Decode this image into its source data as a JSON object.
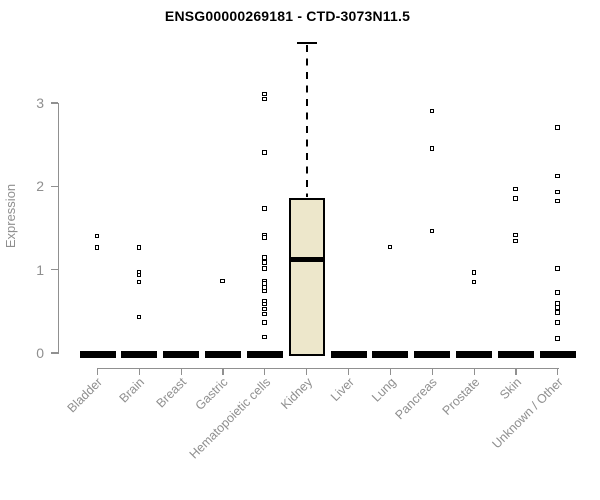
{
  "chart_data": {
    "type": "boxplot",
    "title": "ENSG00000269181 - CTD-3073N11.5",
    "ylabel": "Expression",
    "xlabel": "",
    "yticks": [
      0,
      1,
      2,
      3
    ],
    "ylim": [
      0,
      3.8
    ],
    "grid": false,
    "legend": null,
    "categories": [
      "Bladder",
      "Brain",
      "Breast",
      "Gastric",
      "Hematopoietic cells",
      "Kidney",
      "Liver",
      "Lung",
      "Pancreas",
      "Prostate",
      "Skin",
      "Unknown / Other"
    ],
    "groups": [
      {
        "name": "Bladder",
        "box": {
          "q1": 0,
          "median": 0,
          "q3": 0,
          "whiskers": [
            0,
            0
          ]
        },
        "outliers": [
          1.4,
          1.26
        ]
      },
      {
        "name": "Brain",
        "box": {
          "q1": 0,
          "median": 0,
          "q3": 0,
          "whiskers": [
            0,
            0
          ]
        },
        "outliers": [
          1.26,
          0.96,
          0.93,
          0.85,
          0.43
        ]
      },
      {
        "name": "Breast",
        "box": {
          "q1": 0,
          "median": 0,
          "q3": 0,
          "whiskers": [
            0,
            0
          ]
        },
        "outliers": []
      },
      {
        "name": "Gastric",
        "box": {
          "q1": 0,
          "median": 0,
          "q3": 0,
          "whiskers": [
            0,
            0
          ]
        },
        "outliers": [
          0.86
        ]
      },
      {
        "name": "Hematopoietic cells",
        "box": {
          "q1": 0,
          "median": 0,
          "q3": 0,
          "whiskers": [
            0,
            0
          ]
        },
        "outliers": [
          3.1,
          3.04,
          2.4,
          1.73,
          1.41,
          1.38,
          1.14,
          1.08,
          1.01,
          0.86,
          0.83,
          0.78,
          0.74,
          0.62,
          0.58,
          0.52,
          0.46,
          0.36,
          0.19
        ]
      },
      {
        "name": "Kidney",
        "box": {
          "q1": 0,
          "median": 1.12,
          "q3": 1.86,
          "whiskers": [
            0,
            3.72
          ]
        },
        "outliers": []
      },
      {
        "name": "Liver",
        "box": {
          "q1": 0,
          "median": 0,
          "q3": 0,
          "whiskers": [
            0,
            0
          ]
        },
        "outliers": []
      },
      {
        "name": "Lung",
        "box": {
          "q1": 0,
          "median": 0,
          "q3": 0,
          "whiskers": [
            0,
            0
          ]
        },
        "outliers": [
          1.27
        ]
      },
      {
        "name": "Pancreas",
        "box": {
          "q1": 0,
          "median": 0,
          "q3": 0,
          "whiskers": [
            0,
            0
          ]
        },
        "outliers": [
          2.9,
          2.45,
          1.46
        ]
      },
      {
        "name": "Prostate",
        "box": {
          "q1": 0,
          "median": 0,
          "q3": 0,
          "whiskers": [
            0,
            0
          ]
        },
        "outliers": [
          0.96,
          0.85
        ]
      },
      {
        "name": "Skin",
        "box": {
          "q1": 0,
          "median": 0,
          "q3": 0,
          "whiskers": [
            0,
            0
          ]
        },
        "outliers": [
          1.96,
          1.85,
          1.41,
          1.34
        ]
      },
      {
        "name": "Unknown / Other",
        "box": {
          "q1": 0,
          "median": 0,
          "q3": 0,
          "whiskers": [
            0,
            0
          ]
        },
        "outliers": [
          2.7,
          2.12,
          1.93,
          1.82,
          1.01,
          0.72,
          0.59,
          0.54,
          0.48,
          0.36,
          0.17
        ]
      }
    ],
    "colors": {
      "box_fill": "#ede7cb",
      "box_border": "#000000",
      "point": "#000000",
      "axis": "#909090",
      "tick_label": "#8f8f8f",
      "title": "#000000"
    }
  }
}
